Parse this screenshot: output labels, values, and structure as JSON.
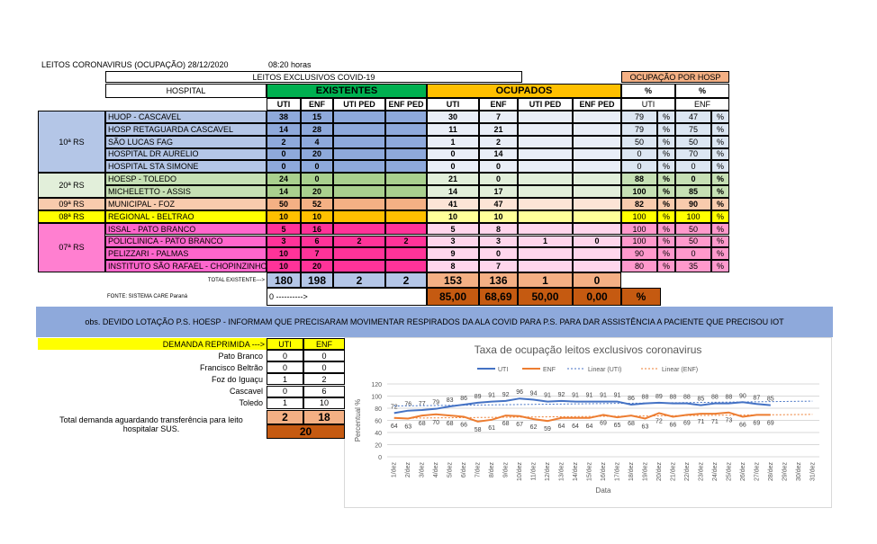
{
  "header": {
    "title": "LEITOS CORONAVIRUS (OCUPAÇÃO) 28/12/2020",
    "time": "08:20 horas",
    "subtitle": "LEITOS EXCLUSIVOS COVID-19",
    "occupancy_title": "OCUPAÇÃO POR HOSP"
  },
  "table": {
    "columns": [
      "HOSPITAL",
      "EXISTENTES",
      "OCUPADOS",
      "%",
      "%"
    ],
    "subcolumns": [
      "UTI",
      "ENF",
      "UTI PED",
      "ENF PED",
      "UTI",
      "ENF",
      "UTI PED",
      "ENF PED",
      "UTI",
      "ENF"
    ],
    "regions": [
      {
        "name": "10ª RS",
        "rows": [
          {
            "hospital": "HUOP - CASCAVEL",
            "existentes": [
              38,
              15,
              null,
              null
            ],
            "ocupados": [
              30,
              7,
              null,
              null
            ],
            "pct": [
              79,
              "%",
              47,
              "%"
            ]
          },
          {
            "hospital": "HOSP RETAGUARDA CASCAVEL",
            "existentes": [
              14,
              28,
              null,
              null
            ],
            "ocupados": [
              11,
              21,
              null,
              null
            ],
            "pct": [
              79,
              "%",
              75,
              "%"
            ]
          },
          {
            "hospital": "SÃO LUCAS FAG",
            "existentes": [
              2,
              4,
              null,
              null
            ],
            "ocupados": [
              1,
              2,
              null,
              null
            ],
            "pct": [
              50,
              "%",
              50,
              "%"
            ]
          },
          {
            "hospital": "HOSPITAL DR AURELIO",
            "existentes": [
              0,
              20,
              null,
              null
            ],
            "ocupados": [
              0,
              14,
              null,
              null
            ],
            "pct": [
              0,
              "%",
              70,
              "%"
            ]
          },
          {
            "hospital": "HOSPITAL STA SIMONE",
            "existentes": [
              0,
              0,
              null,
              null
            ],
            "ocupados": [
              0,
              0,
              null,
              null
            ],
            "pct": [
              0,
              "%",
              0,
              "%"
            ]
          }
        ]
      },
      {
        "name": "20ª RS",
        "rows": [
          {
            "hospital": "HOESP - TOLEDO",
            "existentes": [
              24,
              0,
              null,
              null
            ],
            "ocupados": [
              21,
              0,
              null,
              null
            ],
            "pct": [
              88,
              "%",
              0,
              "%"
            ]
          },
          {
            "hospital": "MICHELETTO - ASSIS",
            "existentes": [
              14,
              20,
              null,
              null
            ],
            "ocupados": [
              14,
              17,
              null,
              null
            ],
            "pct": [
              100,
              "%",
              85,
              "%"
            ]
          }
        ]
      },
      {
        "name": "09ª RS",
        "rows": [
          {
            "hospital": "MUNICIPAL - FOZ",
            "existentes": [
              50,
              52,
              null,
              null
            ],
            "ocupados": [
              41,
              47,
              null,
              null
            ],
            "pct": [
              82,
              "%",
              90,
              "%"
            ]
          }
        ]
      },
      {
        "name": "08ª RS",
        "rows": [
          {
            "hospital": "REGIONAL - BELTRAO",
            "existentes": [
              10,
              10,
              null,
              null
            ],
            "ocupados": [
              10,
              10,
              null,
              null
            ],
            "pct": [
              100,
              "%",
              100,
              "%"
            ]
          }
        ]
      },
      {
        "name": "07ª RS",
        "rows": [
          {
            "hospital": "ISSAL - PATO BRANCO",
            "existentes": [
              5,
              16,
              null,
              null
            ],
            "ocupados": [
              5,
              8,
              null,
              null
            ],
            "pct": [
              100,
              "%",
              50,
              "%"
            ]
          },
          {
            "hospital": "POLICLINICA - PATO BRANCO",
            "existentes": [
              3,
              6,
              2,
              2
            ],
            "ocupados": [
              3,
              3,
              1,
              0
            ],
            "pct": [
              100,
              "%",
              50,
              "%"
            ]
          },
          {
            "hospital": "PELIZZARI - PALMAS",
            "existentes": [
              10,
              7,
              null,
              null
            ],
            "ocupados": [
              9,
              0,
              null,
              null
            ],
            "pct": [
              90,
              "%",
              0,
              "%"
            ]
          },
          {
            "hospital": "INSTITUTO SÃO RAFAEL - CHOPINZINHO",
            "existentes": [
              10,
              20,
              null,
              null
            ],
            "ocupados": [
              8,
              7,
              null,
              null
            ],
            "pct": [
              80,
              "%",
              35,
              "%"
            ]
          }
        ]
      }
    ],
    "total": {
      "label": "TOTAL EXISTENTE--->",
      "existentes": [
        180,
        198,
        2,
        2
      ],
      "ocupados": [
        153,
        136,
        1,
        0
      ]
    },
    "footer": {
      "source": "FONTE: SISTEMA CARE Paraná",
      "arrow": "0 ---------->",
      "rates": [
        "85,00",
        "68,69",
        "50,00",
        "0,00"
      ],
      "unit": "%"
    }
  },
  "obs": "obs. DEVIDO LOTAÇÃO P.S. HOESP - INFORMAM QUE PRECISARAM MOVIMENTAR RESPIRADOS DA ALA COVID PARA P.S. PARA DAR ASSISTÊNCIA A PACIENTE QUE PRECISOU IOT",
  "demand": {
    "label": "DEMANDA REPRIMIDA --->",
    "columns": [
      "UTI",
      "ENF"
    ],
    "rows": [
      {
        "city": "Pato Branco",
        "values": [
          0,
          0
        ]
      },
      {
        "city": "Francisco Beltrão",
        "values": [
          0,
          0
        ]
      },
      {
        "city": "Foz do Iguaçu",
        "values": [
          1,
          2
        ]
      },
      {
        "city": "Cascavel",
        "values": [
          0,
          6
        ]
      },
      {
        "city": "Toledo",
        "values": [
          1,
          10
        ]
      }
    ],
    "total_label": "Total demanda aguardando transferência para leito hospitalar SUS.",
    "totals": [
      2,
      18
    ],
    "grand_total": 20
  },
  "chart_data": {
    "type": "line",
    "title": "Taxa de ocupação leitos exclusivos coronavirus",
    "x_label": "Data",
    "y_label": "Percentual %",
    "categories": [
      "1/dez",
      "2/dez",
      "3/dez",
      "4/dez",
      "5/dez",
      "6/dez",
      "7/dez",
      "8/dez",
      "9/dez",
      "10/dez",
      "11/dez",
      "12/dez",
      "13/dez",
      "14/dez",
      "15/dez",
      "16/dez",
      "17/dez",
      "18/dez",
      "19/dez",
      "20/dez",
      "21/dez",
      "22/dez",
      "23/dez",
      "24/dez",
      "25/dez",
      "26/dez",
      "27/dez",
      "28/dez",
      "29/dez",
      "30/dez",
      "31/dez"
    ],
    "ylim": [
      0,
      120
    ],
    "yticks": [
      0,
      20,
      40,
      60,
      80,
      100,
      120
    ],
    "grid": true,
    "series": [
      {
        "name": "UTI",
        "color": "#4472c4",
        "label_side": "above",
        "trendline": "Linear (UTI)",
        "values": [
          72,
          76,
          77,
          79,
          83,
          86,
          89,
          91,
          92,
          96,
          94,
          91,
          92,
          91,
          91,
          91,
          91,
          86,
          88,
          89,
          88,
          88,
          85,
          88,
          88,
          90,
          87,
          85,
          null,
          null,
          null
        ]
      },
      {
        "name": "ENF",
        "color": "#ed7d31",
        "label_side": "below",
        "trendline": "Linear (ENF)",
        "values": [
          64,
          63,
          68,
          70,
          68,
          66,
          58,
          61,
          68,
          67,
          62,
          59,
          64,
          64,
          64,
          69,
          65,
          68,
          63,
          72,
          66,
          69,
          71,
          71,
          73,
          66,
          69,
          69,
          null,
          null,
          null
        ]
      }
    ]
  }
}
